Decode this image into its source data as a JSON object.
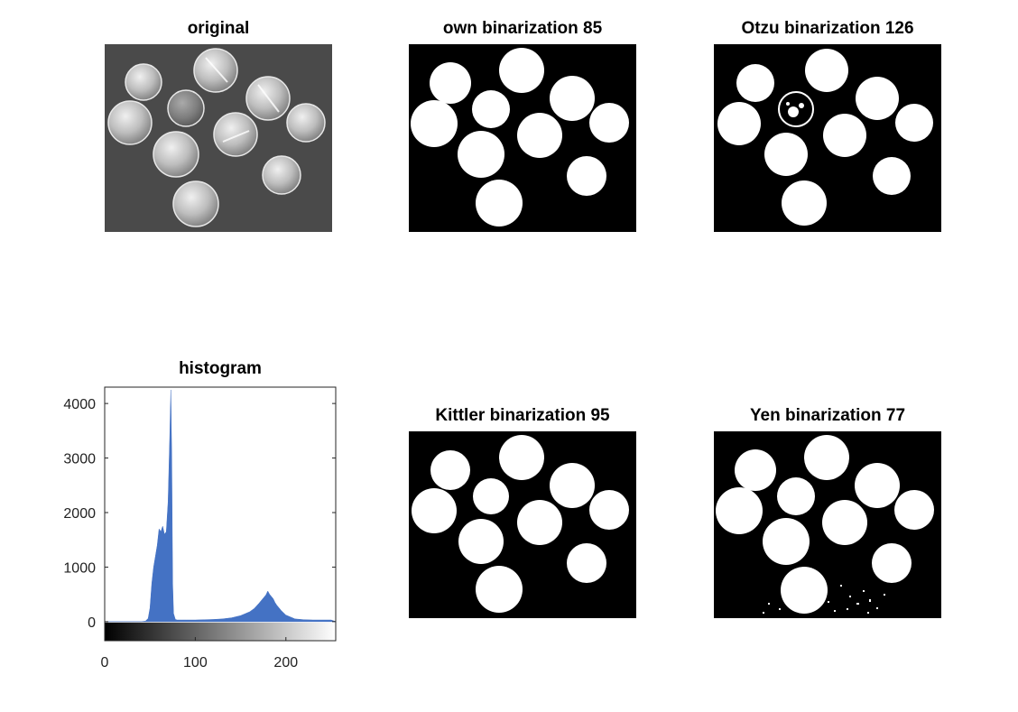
{
  "panels": {
    "original": {
      "title": "original"
    },
    "own": {
      "title": "own binarization 85"
    },
    "otzu": {
      "title": "Otzu binarization 126"
    },
    "kittler": {
      "title": "Kittler binarization 95"
    },
    "yen": {
      "title": "Yen binarization 77"
    }
  },
  "chart_data": {
    "type": "area",
    "title": "histogram",
    "xlabel": "",
    "ylabel": "",
    "xlim": [
      0,
      255
    ],
    "ylim": [
      -350,
      4300
    ],
    "xticks": [
      0,
      100,
      200
    ],
    "yticks": [
      0,
      1000,
      2000,
      3000,
      4000
    ],
    "colorbar": "grayscale 0-255 below axis",
    "series_color": "#4472c4",
    "x": [
      0,
      10,
      20,
      30,
      40,
      45,
      48,
      50,
      52,
      54,
      56,
      58,
      60,
      62,
      64,
      66,
      68,
      70,
      72,
      73,
      74,
      75,
      76,
      78,
      80,
      85,
      90,
      100,
      110,
      120,
      130,
      140,
      150,
      160,
      165,
      170,
      175,
      178,
      180,
      182,
      184,
      186,
      188,
      190,
      195,
      200,
      210,
      220,
      230,
      240,
      250,
      255
    ],
    "values": [
      0,
      0,
      0,
      0,
      0,
      10,
      60,
      250,
      700,
      1000,
      1200,
      1400,
      1700,
      1650,
      1750,
      1600,
      1650,
      2200,
      3500,
      4250,
      3000,
      700,
      150,
      40,
      30,
      30,
      30,
      30,
      35,
      40,
      50,
      70,
      110,
      180,
      240,
      330,
      430,
      490,
      560,
      500,
      460,
      420,
      350,
      300,
      200,
      120,
      50,
      35,
      30,
      30,
      30,
      0
    ]
  }
}
